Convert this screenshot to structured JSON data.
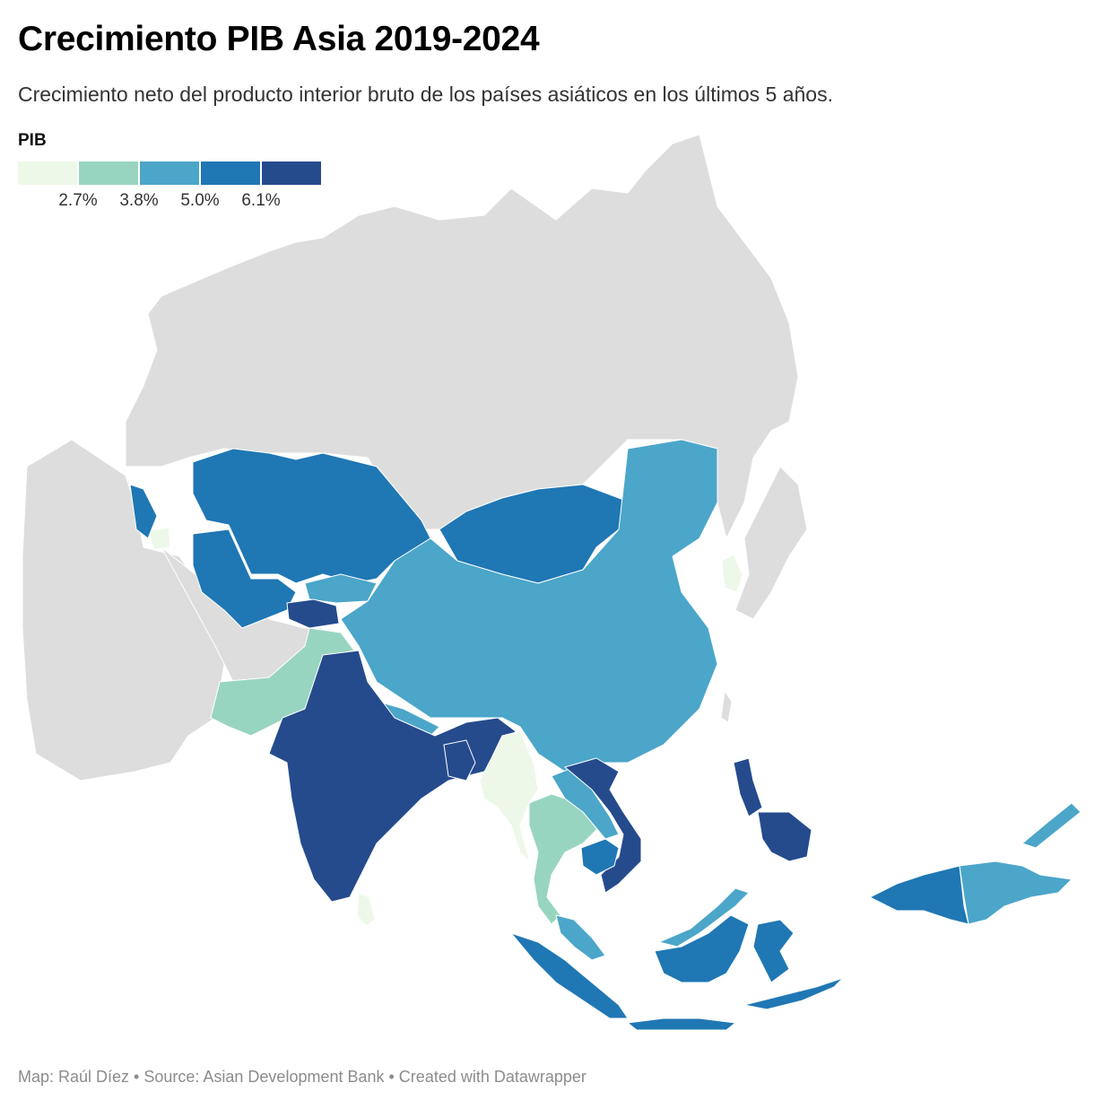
{
  "header": {
    "title": "Crecimiento PIB Asia 2019-2024",
    "subtitle": "Crecimiento neto del producto interior bruto de los países asiáticos en los últimos 5 años."
  },
  "legend": {
    "title": "PIB",
    "colors": [
      "#edf8e9",
      "#98d5c1",
      "#4ba6c9",
      "#1f77b4",
      "#254b8d"
    ],
    "ticks": [
      "2.7%",
      "3.8%",
      "5.0%",
      "6.1%"
    ]
  },
  "map": {
    "no_data_color": "#dddddd",
    "regions": [
      {
        "name": "India",
        "class": 5
      },
      {
        "name": "Bangladesh",
        "class": 5
      },
      {
        "name": "Tajikistan",
        "class": 5
      },
      {
        "name": "Vietnam",
        "class": 5
      },
      {
        "name": "Philippines",
        "class": 5
      },
      {
        "name": "Kazakhstan",
        "class": 4
      },
      {
        "name": "Mongolia",
        "class": 4
      },
      {
        "name": "Cambodia",
        "class": 4
      },
      {
        "name": "Indonesia",
        "class": 4
      },
      {
        "name": "China",
        "class": 3
      },
      {
        "name": "Kyrgyzstan",
        "class": 3
      },
      {
        "name": "Nepal",
        "class": 3
      },
      {
        "name": "Laos",
        "class": 3
      },
      {
        "name": "Malaysia",
        "class": 3
      },
      {
        "name": "Papua New Guinea",
        "class": 3
      },
      {
        "name": "Pakistan",
        "class": 2
      },
      {
        "name": "Thailand",
        "class": 2
      },
      {
        "name": "Myanmar",
        "class": 1
      },
      {
        "name": "Sri Lanka",
        "class": 1
      },
      {
        "name": "South Korea",
        "class": 1
      },
      {
        "name": "Armenia",
        "class": 1
      }
    ]
  },
  "footer": {
    "credit": "Map: Raúl Díez • Source: Asian Development Bank • Created with Datawrapper"
  }
}
